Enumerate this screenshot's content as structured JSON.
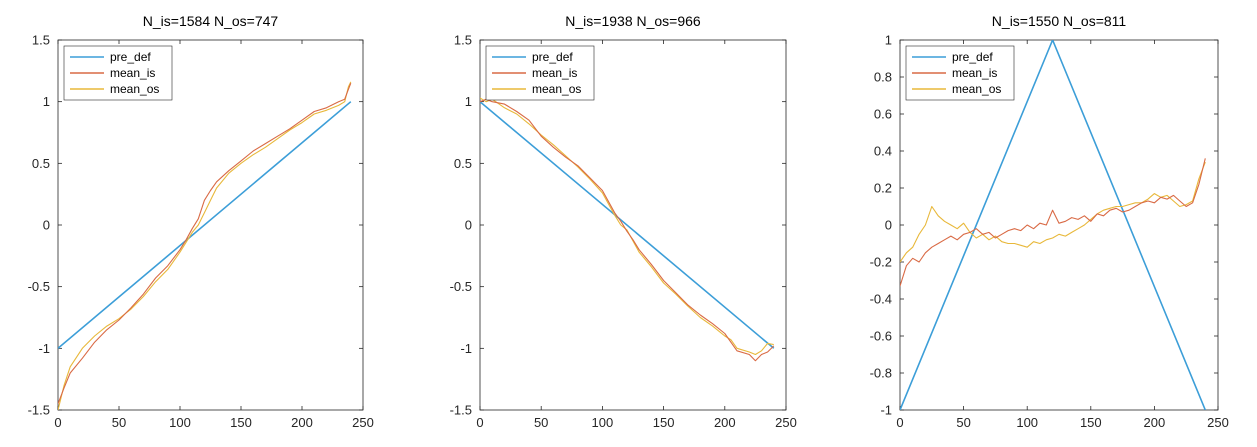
{
  "chart_data": [
    {
      "type": "line",
      "title": "N_is=1584 N_os=747",
      "xlim": [
        0,
        250
      ],
      "ylim": [
        -1.5,
        1.5
      ],
      "xticks": [
        0,
        50,
        100,
        150,
        200,
        250
      ],
      "xtick_labels": [
        "0",
        "50",
        "100",
        "150",
        "200",
        "250"
      ],
      "yticks": [
        -1.5,
        -1,
        -0.5,
        0,
        0.5,
        1,
        1.5
      ],
      "ytick_labels": [
        "-1.5",
        "-1",
        "-0.5",
        "0",
        "0.5",
        "1",
        "1.5"
      ],
      "legend": {
        "placement": "top-left",
        "entries": [
          "pre_def",
          "mean_is",
          "mean_os"
        ]
      },
      "series": [
        {
          "name": "pre_def",
          "color": "#3c9ed8",
          "x": [
            0,
            240
          ],
          "y": [
            -1,
            1
          ]
        },
        {
          "name": "mean_is",
          "color": "#d96a45",
          "x": [
            0,
            5,
            10,
            20,
            30,
            40,
            50,
            60,
            70,
            80,
            90,
            100,
            105,
            110,
            115,
            120,
            125,
            130,
            140,
            150,
            160,
            170,
            180,
            190,
            200,
            210,
            220,
            230,
            235,
            238,
            240
          ],
          "y": [
            -1.45,
            -1.32,
            -1.2,
            -1.08,
            -0.95,
            -0.85,
            -0.77,
            -0.67,
            -0.56,
            -0.43,
            -0.33,
            -0.2,
            -0.12,
            -0.03,
            0.05,
            0.2,
            0.28,
            0.35,
            0.44,
            0.52,
            0.6,
            0.66,
            0.72,
            0.78,
            0.85,
            0.92,
            0.95,
            1.0,
            1.02,
            1.1,
            1.15
          ]
        },
        {
          "name": "mean_os",
          "color": "#e8b83a",
          "x": [
            0,
            5,
            10,
            20,
            30,
            40,
            50,
            60,
            70,
            80,
            90,
            100,
            105,
            110,
            115,
            120,
            125,
            130,
            140,
            150,
            160,
            170,
            180,
            190,
            200,
            210,
            220,
            230,
            235,
            238,
            240
          ],
          "y": [
            -1.5,
            -1.3,
            -1.15,
            -1.0,
            -0.9,
            -0.82,
            -0.76,
            -0.68,
            -0.58,
            -0.46,
            -0.36,
            -0.22,
            -0.14,
            -0.06,
            0.0,
            0.1,
            0.2,
            0.3,
            0.42,
            0.5,
            0.57,
            0.63,
            0.7,
            0.77,
            0.83,
            0.9,
            0.93,
            0.97,
            1.0,
            1.12,
            1.16
          ]
        }
      ]
    },
    {
      "type": "line",
      "title": "N_is=1938 N_os=966",
      "xlim": [
        0,
        250
      ],
      "ylim": [
        -1.5,
        1.5
      ],
      "xticks": [
        0,
        50,
        100,
        150,
        200,
        250
      ],
      "xtick_labels": [
        "0",
        "50",
        "100",
        "150",
        "200",
        "250"
      ],
      "yticks": [
        -1.5,
        -1,
        -0.5,
        0,
        0.5,
        1,
        1.5
      ],
      "ytick_labels": [
        "-1.5",
        "-1",
        "-0.5",
        "0",
        "0.5",
        "1",
        "1.5"
      ],
      "legend": {
        "placement": "top-left",
        "entries": [
          "pre_def",
          "mean_is",
          "mean_os"
        ]
      },
      "series": [
        {
          "name": "pre_def",
          "color": "#3c9ed8",
          "x": [
            0,
            240
          ],
          "y": [
            1,
            -1
          ]
        },
        {
          "name": "mean_is",
          "color": "#d96a45",
          "x": [
            0,
            5,
            10,
            20,
            30,
            40,
            50,
            60,
            70,
            80,
            90,
            100,
            110,
            115,
            120,
            125,
            130,
            140,
            150,
            160,
            170,
            180,
            190,
            200,
            205,
            210,
            220,
            225,
            230,
            235,
            240
          ],
          "y": [
            1.0,
            1.02,
            1.0,
            0.98,
            0.92,
            0.85,
            0.72,
            0.63,
            0.55,
            0.48,
            0.38,
            0.28,
            0.1,
            0.03,
            -0.05,
            -0.12,
            -0.2,
            -0.32,
            -0.45,
            -0.55,
            -0.65,
            -0.73,
            -0.8,
            -0.88,
            -0.95,
            -1.02,
            -1.05,
            -1.1,
            -1.05,
            -1.03,
            -0.98
          ]
        },
        {
          "name": "mean_os",
          "color": "#e8b83a",
          "x": [
            0,
            5,
            10,
            20,
            30,
            40,
            50,
            60,
            70,
            80,
            90,
            100,
            110,
            115,
            120,
            125,
            130,
            140,
            150,
            160,
            170,
            180,
            190,
            200,
            205,
            210,
            220,
            225,
            230,
            235,
            240
          ],
          "y": [
            1.03,
            1.0,
            1.02,
            0.95,
            0.9,
            0.82,
            0.73,
            0.65,
            0.56,
            0.47,
            0.37,
            0.26,
            0.08,
            0.0,
            -0.04,
            -0.13,
            -0.22,
            -0.34,
            -0.47,
            -0.56,
            -0.66,
            -0.75,
            -0.82,
            -0.9,
            -0.93,
            -1.0,
            -1.03,
            -1.05,
            -1.02,
            -0.96,
            -0.97
          ]
        }
      ]
    },
    {
      "type": "line",
      "title": "N_is=1550 N_os=811",
      "xlim": [
        0,
        250
      ],
      "ylim": [
        -1,
        1
      ],
      "xticks": [
        0,
        50,
        100,
        150,
        200,
        250
      ],
      "xtick_labels": [
        "0",
        "50",
        "100",
        "150",
        "200",
        "250"
      ],
      "yticks": [
        -1,
        -0.8,
        -0.6,
        -0.4,
        -0.2,
        0,
        0.2,
        0.4,
        0.6,
        0.8,
        1
      ],
      "ytick_labels": [
        "-1",
        "-0.8",
        "-0.6",
        "-0.4",
        "-0.2",
        "0",
        "0.2",
        "0.4",
        "0.6",
        "0.8",
        "1"
      ],
      "legend": {
        "placement": "top-left",
        "entries": [
          "pre_def",
          "mean_is",
          "mean_os"
        ]
      },
      "series": [
        {
          "name": "pre_def",
          "color": "#3c9ed8",
          "x": [
            0,
            120,
            240
          ],
          "y": [
            -1,
            1,
            -1
          ]
        },
        {
          "name": "mean_is",
          "color": "#d96a45",
          "x": [
            0,
            5,
            10,
            15,
            20,
            25,
            30,
            35,
            40,
            45,
            50,
            55,
            60,
            65,
            70,
            75,
            80,
            85,
            90,
            95,
            100,
            105,
            110,
            115,
            120,
            125,
            130,
            135,
            140,
            145,
            150,
            155,
            160,
            165,
            170,
            175,
            180,
            185,
            190,
            195,
            200,
            205,
            210,
            215,
            220,
            225,
            230,
            235,
            240
          ],
          "y": [
            -0.33,
            -0.22,
            -0.18,
            -0.2,
            -0.15,
            -0.12,
            -0.1,
            -0.08,
            -0.06,
            -0.08,
            -0.05,
            -0.04,
            -0.02,
            -0.05,
            -0.04,
            -0.07,
            -0.05,
            -0.03,
            -0.02,
            -0.03,
            0.0,
            -0.02,
            0.01,
            0.0,
            0.08,
            0.01,
            0.02,
            0.04,
            0.03,
            0.05,
            0.02,
            0.06,
            0.05,
            0.08,
            0.09,
            0.07,
            0.08,
            0.1,
            0.12,
            0.13,
            0.12,
            0.15,
            0.14,
            0.16,
            0.13,
            0.1,
            0.12,
            0.22,
            0.36
          ]
        },
        {
          "name": "mean_os",
          "color": "#e8b83a",
          "x": [
            0,
            5,
            10,
            15,
            20,
            25,
            30,
            35,
            40,
            45,
            50,
            55,
            60,
            65,
            70,
            75,
            80,
            85,
            90,
            95,
            100,
            105,
            110,
            115,
            120,
            125,
            130,
            135,
            140,
            145,
            150,
            155,
            160,
            165,
            170,
            175,
            180,
            185,
            190,
            195,
            200,
            205,
            210,
            215,
            220,
            225,
            230,
            235,
            240
          ],
          "y": [
            -0.2,
            -0.15,
            -0.12,
            -0.05,
            0.0,
            0.1,
            0.05,
            0.02,
            0.0,
            -0.02,
            0.01,
            -0.04,
            -0.07,
            -0.05,
            -0.08,
            -0.06,
            -0.09,
            -0.1,
            -0.1,
            -0.11,
            -0.12,
            -0.09,
            -0.1,
            -0.08,
            -0.07,
            -0.05,
            -0.06,
            -0.04,
            -0.02,
            0.0,
            0.03,
            0.06,
            0.08,
            0.09,
            0.1,
            0.1,
            0.11,
            0.12,
            0.12,
            0.14,
            0.17,
            0.15,
            0.16,
            0.13,
            0.1,
            0.11,
            0.13,
            0.25,
            0.34
          ]
        }
      ]
    }
  ]
}
